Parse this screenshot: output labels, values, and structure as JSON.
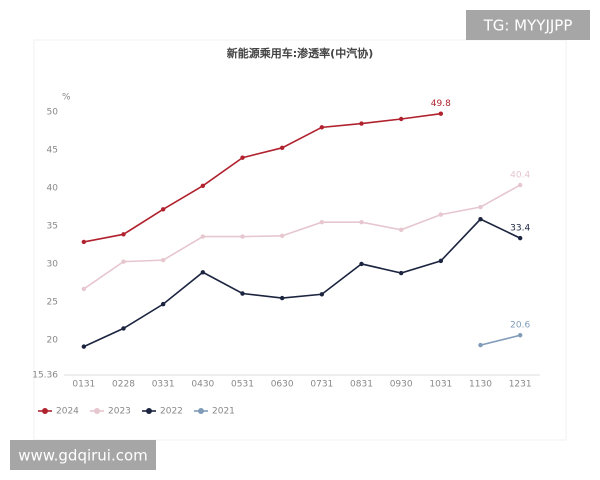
{
  "chart_data": {
    "type": "line",
    "title": "新能源乘用车:渗透率(中汽协)",
    "y_unit": "%",
    "categories": [
      "0131",
      "0228",
      "0331",
      "0430",
      "0531",
      "0630",
      "0731",
      "0831",
      "0930",
      "1031",
      "1130",
      "1231"
    ],
    "series": [
      {
        "name": "2024",
        "color": "#b0222e",
        "values": [
          32.9,
          33.9,
          37.2,
          40.3,
          44.0,
          45.3,
          48.0,
          48.5,
          49.1,
          49.8,
          null,
          null
        ]
      },
      {
        "name": "2023",
        "color": "#e6c6cf",
        "values": [
          26.7,
          30.3,
          30.5,
          33.6,
          33.6,
          33.7,
          35.5,
          35.5,
          34.5,
          36.5,
          37.5,
          40.4
        ]
      },
      {
        "name": "2022",
        "color": "#1c2540",
        "values": [
          19.1,
          21.5,
          24.7,
          28.9,
          26.1,
          25.5,
          26.0,
          30.0,
          28.8,
          30.4,
          35.9,
          33.4
        ]
      },
      {
        "name": "2021",
        "color": "#7f9bb8",
        "values": [
          null,
          null,
          null,
          null,
          null,
          null,
          null,
          null,
          null,
          null,
          19.3,
          20.6
        ]
      }
    ],
    "ylim": [
      15.36,
      52
    ],
    "yticks": [
      15.36,
      20,
      25,
      30,
      35,
      40,
      45,
      50
    ],
    "grid": false,
    "legend": "bottom-left"
  },
  "watermarks": {
    "top": "TG: MYYJJPP",
    "bottom": "www.gdqirui.com"
  }
}
